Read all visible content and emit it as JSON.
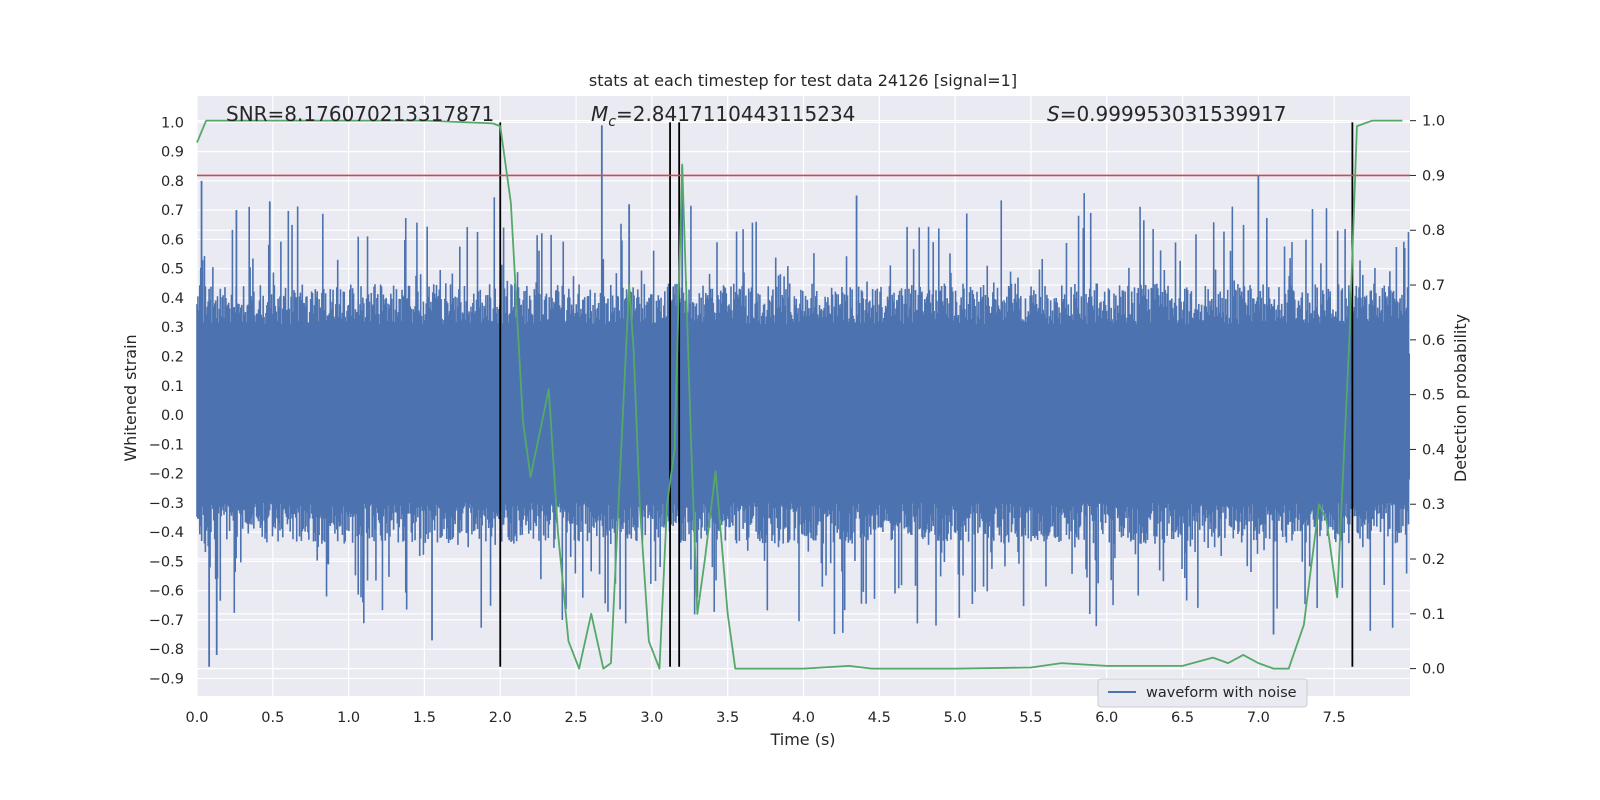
{
  "chart_data": {
    "type": "line",
    "title": "stats at each timestep for test data 24126 [signal=1]",
    "xlabel": "Time (s)",
    "ylabel": "Whitened strain",
    "ylabel_right": "Detection probability",
    "xlim": [
      0.0,
      8.0
    ],
    "ylim": [
      -0.96,
      1.09
    ],
    "ylim_right": [
      -0.05,
      1.045
    ],
    "x_ticks": [
      "0.0",
      "0.5",
      "1.0",
      "1.5",
      "2.0",
      "2.5",
      "3.0",
      "3.5",
      "4.0",
      "4.5",
      "5.0",
      "5.5",
      "6.0",
      "6.5",
      "7.0",
      "7.5"
    ],
    "y_ticks": [
      "-0.9",
      "-0.8",
      "-0.7",
      "-0.6",
      "-0.5",
      "-0.4",
      "-0.3",
      "-0.2",
      "-0.1",
      "0.0",
      "0.1",
      "0.2",
      "0.3",
      "0.4",
      "0.5",
      "0.6",
      "0.7",
      "0.8",
      "0.9",
      "1.0"
    ],
    "y_ticks_right": [
      "0.0",
      "0.1",
      "0.2",
      "0.3",
      "0.4",
      "0.5",
      "0.6",
      "0.7",
      "0.8",
      "0.9",
      "1.0"
    ],
    "grid": true,
    "legend_position": "bottom-right",
    "annotations": {
      "snr": "SNR=8.176070213317871",
      "mc_symbol": "M",
      "mc_sub": "c",
      "mc_value": "=2.8417110443115234",
      "s_symbol": "S",
      "s_value": "=0.999953031539917"
    },
    "threshold_right": 0.9,
    "vertical_lines_x": [
      2.0,
      3.12,
      3.18,
      7.62
    ],
    "vertical_line_range": [
      -0.86,
      1.0
    ],
    "series": [
      {
        "name": "waveform with noise",
        "axis": "left",
        "color": "#4c72b0",
        "envelope": {
          "upper": 0.43,
          "lower": -0.4,
          "extreme_upper": 0.99,
          "extreme_lower": -0.86
        },
        "spikes": [
          {
            "x": 0.03,
            "y": 0.8
          },
          {
            "x": 0.08,
            "y": -0.86
          },
          {
            "x": 0.13,
            "y": -0.82
          },
          {
            "x": 0.26,
            "y": 0.7
          },
          {
            "x": 0.48,
            "y": 0.73
          },
          {
            "x": 1.55,
            "y": -0.77
          },
          {
            "x": 2.67,
            "y": 0.99
          },
          {
            "x": 2.85,
            "y": 0.72
          },
          {
            "x": 3.2,
            "y": 0.85
          },
          {
            "x": 4.35,
            "y": 0.75
          },
          {
            "x": 7.0,
            "y": 0.82
          },
          {
            "x": 7.1,
            "y": -0.75
          }
        ]
      },
      {
        "name": "detection probability",
        "axis": "right",
        "color": "#55a868",
        "x": [
          0.0,
          0.06,
          0.5,
          1.0,
          1.5,
          1.95,
          2.0,
          2.07,
          2.15,
          2.2,
          2.32,
          2.38,
          2.45,
          2.52,
          2.6,
          2.68,
          2.73,
          2.78,
          2.85,
          2.88,
          2.92,
          2.98,
          3.05,
          3.1,
          3.15,
          3.2,
          3.26,
          3.3,
          3.35,
          3.42,
          3.5,
          3.55,
          3.65,
          4.0,
          4.3,
          4.45,
          4.55,
          5.0,
          5.5,
          5.7,
          6.0,
          6.5,
          6.7,
          6.8,
          6.9,
          7.0,
          7.1,
          7.2,
          7.3,
          7.4,
          7.45,
          7.52,
          7.6,
          7.65,
          7.75,
          7.85,
          7.95
        ],
        "values": [
          0.96,
          1.0,
          1.0,
          1.0,
          1.0,
          0.995,
          0.99,
          0.85,
          0.45,
          0.35,
          0.51,
          0.25,
          0.05,
          0.0,
          0.1,
          0.0,
          0.01,
          0.3,
          0.7,
          0.58,
          0.3,
          0.05,
          0.0,
          0.3,
          0.4,
          0.92,
          0.4,
          0.1,
          0.2,
          0.36,
          0.1,
          0.0,
          0.0,
          0.0,
          0.005,
          0.0,
          0.0,
          0.0,
          0.002,
          0.01,
          0.005,
          0.005,
          0.02,
          0.01,
          0.025,
          0.01,
          0.0,
          0.0,
          0.08,
          0.3,
          0.27,
          0.13,
          0.6,
          0.99,
          1.0,
          1.0,
          1.0
        ]
      }
    ]
  }
}
